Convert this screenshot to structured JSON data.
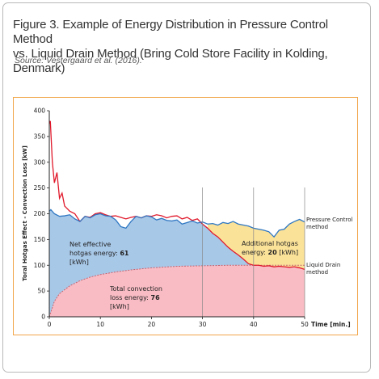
{
  "figure": {
    "title_line1": "Figure 3. Example of Energy Distribution in Pressure Control Method",
    "title_line2": "vs. Liquid Drain Method (Bring Cold Store Facility in Kolding, Denmark)",
    "source": "Source: Vestergaard et al. (2016)."
  },
  "chart_data": {
    "type": "area",
    "xlabel": "Time [min.]",
    "ylabel": "Toral Hotgas Effect  -  Convection Loss [kW]",
    "xlim": [
      0,
      50
    ],
    "ylim": [
      0,
      400
    ],
    "x_ticks": [
      "0",
      "10",
      "20",
      "30",
      "40",
      "50"
    ],
    "y_ticks": [
      "0",
      "50",
      "100",
      "150",
      "200",
      "250",
      "300",
      "350",
      "400"
    ],
    "vertical_markers": [
      30,
      40,
      50
    ],
    "grid": "vertical lines at 30, 40 and 50 min",
    "colors": {
      "pressure_control": "#2e77c2",
      "liquid_drain": "#e0192b",
      "net_effective_fill": "#a8c8e8",
      "additional_fill": "#fbe299",
      "convection_fill": "#f9bcc4",
      "convection_line": "#c46470"
    },
    "series": [
      {
        "name": "Pressure Control method",
        "x": [
          0,
          0.3,
          1,
          2,
          3,
          4,
          5,
          6,
          7,
          8,
          9,
          10,
          11,
          12,
          13,
          14,
          15,
          16,
          17,
          18,
          19,
          20,
          21,
          22,
          23,
          24,
          25,
          26,
          27,
          28,
          29,
          30,
          31,
          32,
          33,
          34,
          35,
          36,
          37,
          38,
          39,
          40,
          41,
          42,
          43,
          44,
          45,
          46,
          47,
          48,
          49,
          50
        ],
        "y": [
          205,
          208,
          200,
          195,
          196,
          198,
          190,
          185,
          195,
          192,
          198,
          200,
          196,
          195,
          188,
          175,
          172,
          185,
          195,
          192,
          196,
          194,
          188,
          191,
          187,
          186,
          188,
          180,
          183,
          186,
          182,
          184,
          180,
          181,
          178,
          183,
          181,
          185,
          180,
          178,
          176,
          172,
          170,
          168,
          165,
          155,
          168,
          170,
          180,
          185,
          189,
          184
        ]
      },
      {
        "name": "Liquid Drain method",
        "x": [
          0,
          0.2,
          0.6,
          1,
          1.5,
          2,
          2.5,
          3,
          4,
          5,
          6,
          7,
          8,
          9,
          10,
          11,
          12,
          13,
          14,
          15,
          16,
          17,
          18,
          19,
          20,
          21,
          22,
          23,
          24,
          25,
          26,
          27,
          28,
          29,
          30,
          31,
          32,
          33,
          34,
          35,
          36,
          37,
          38,
          39,
          40,
          41,
          42,
          43,
          44,
          45,
          46,
          47,
          48,
          49,
          50
        ],
        "y": [
          375,
          380,
          300,
          260,
          280,
          230,
          240,
          215,
          205,
          200,
          185,
          195,
          193,
          200,
          202,
          198,
          195,
          196,
          193,
          190,
          193,
          195,
          192,
          196,
          195,
          198,
          196,
          192,
          195,
          196,
          190,
          193,
          187,
          190,
          180,
          172,
          162,
          155,
          145,
          135,
          127,
          120,
          112,
          103,
          100,
          100,
          98,
          99,
          97,
          98,
          97,
          96,
          97,
          95,
          92
        ]
      },
      {
        "name": "Total convection loss",
        "x": [
          0,
          1,
          2,
          4,
          6,
          8,
          10,
          13,
          16,
          20,
          25,
          30,
          35,
          40,
          45,
          50
        ],
        "y": [
          0,
          30,
          45,
          60,
          70,
          77,
          82,
          87,
          91,
          95,
          98,
          99,
          100,
          100,
          100,
          100
        ]
      }
    ],
    "annotations": [
      {
        "text_line1": "Net effective",
        "text_line2": "hotgas energy: ",
        "value": "61",
        "text_line3": "[kWh]"
      },
      {
        "text_line1": "Additional hotgas",
        "text_line2": "energy: ",
        "value": "20",
        "unit": " [kWh]"
      },
      {
        "text_line1": "Total convection",
        "text_line2": "loss energy: ",
        "value": "76",
        "text_line3": "[kWh]"
      }
    ],
    "legend": {
      "pressure_line1": "Pressure Control",
      "pressure_line2": "method",
      "drain_line1": "Liquid Drain",
      "drain_line2": "method"
    }
  }
}
